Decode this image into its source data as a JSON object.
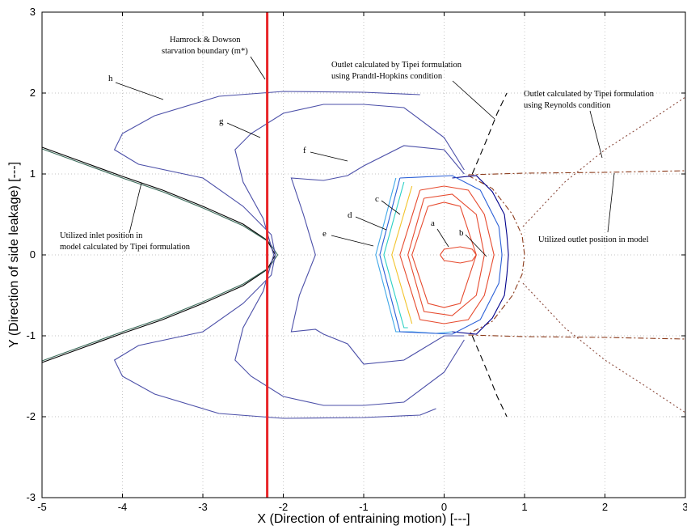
{
  "chart_data": {
    "type": "line",
    "xlabel": "X (Direction of entraining motion) [---]",
    "ylabel": "Y (Direction of side leakage) [---]",
    "xlim": [
      -5,
      3
    ],
    "ylim": [
      -3,
      3
    ],
    "xticks": [
      "-5",
      "-4",
      "-3",
      "-2",
      "-1",
      "0",
      "1",
      "2",
      "3"
    ],
    "yticks": [
      "-3",
      "-2",
      "-1",
      "0",
      "1",
      "2",
      "3"
    ],
    "grid": true,
    "annotations": {
      "hamrock1": "Hamrock & Dowson",
      "hamrock2": "starvation boundary (m*)",
      "prandtl1": "Outlet calculated by Tipei formulation",
      "prandtl2": "using Prandtl-Hopkins condition",
      "reynolds1": "Outlet calculated by Tipei formulation",
      "reynolds2": "using Reynolds condition",
      "inlet1": "Utilized inlet position in",
      "inlet2": "model calculated by Tipei formulation",
      "outlet": "Utilized outlet position in model"
    },
    "contour_labels": [
      "a",
      "b",
      "c",
      "d",
      "e",
      "f",
      "g",
      "h"
    ],
    "starvation_boundary_x": -2.2,
    "series": [
      {
        "id": "inlet-1",
        "color": "#000000",
        "x": [
          -5,
          -4.5,
          -4,
          -3.5,
          -3,
          -2.5,
          -2.2,
          -2.1,
          -2.2,
          -2.5,
          -3,
          -3.5,
          -4,
          -4.5,
          -5
        ],
        "y": [
          1.33,
          1.15,
          0.97,
          0.8,
          0.6,
          0.38,
          0.18,
          0,
          -0.18,
          -0.38,
          -0.6,
          -0.8,
          -0.97,
          -1.15,
          -1.33
        ]
      },
      {
        "id": "inlet-2",
        "color": "#3a6b5a",
        "x": [
          -5,
          -4.5,
          -4,
          -3.5,
          -3,
          -2.5,
          -2.18,
          -2.07,
          -2.18,
          -2.5,
          -3,
          -3.5,
          -4,
          -4.5,
          -5
        ],
        "y": [
          1.31,
          1.13,
          0.95,
          0.78,
          0.58,
          0.36,
          0.16,
          0,
          -0.16,
          -0.36,
          -0.58,
          -0.78,
          -0.95,
          -1.13,
          -1.31
        ]
      },
      {
        "id": "outlet-ph-top",
        "color": "#000000",
        "dash": "8,5",
        "x": [
          0.35,
          0.52,
          0.66,
          0.78
        ],
        "y": [
          1.0,
          1.4,
          1.75,
          2.0
        ]
      },
      {
        "id": "outlet-ph-bot",
        "color": "#000000",
        "dash": "8,5",
        "x": [
          0.35,
          0.52,
          0.66,
          0.78
        ],
        "y": [
          -1.0,
          -1.4,
          -1.75,
          -2.0
        ]
      },
      {
        "id": "outlet-rey-top",
        "color": "#8b4a3c",
        "dash": "2,3",
        "x": [
          0.98,
          1.5,
          2.0,
          2.5,
          3.0
        ],
        "y": [
          -0.35,
          -0.9,
          -1.3,
          -1.62,
          -1.95
        ]
      },
      {
        "id": "outlet-rey-bot",
        "color": "#8b4a3c",
        "dash": "2,3",
        "x": [
          0.98,
          1.5,
          2.0,
          2.5,
          3.0
        ],
        "y": [
          0.35,
          0.9,
          1.3,
          1.62,
          1.95
        ]
      },
      {
        "id": "utilized-outlet",
        "color": "#8b3a1a",
        "dash": "7,3,2,3",
        "x": [
          0.3,
          0.6,
          0.85,
          0.97,
          1.0,
          0.97,
          0.85,
          0.6,
          0.3
        ],
        "y": [
          0.98,
          0.82,
          0.5,
          0.24,
          0,
          -0.24,
          -0.5,
          -0.82,
          -0.98
        ]
      },
      {
        "id": "utilized-outlet-top",
        "color": "#8b3a1a",
        "dash": "7,3,2,3",
        "x": [
          0.3,
          1.0,
          2.0,
          3.0
        ],
        "y": [
          0.99,
          1.01,
          1.02,
          1.04
        ]
      },
      {
        "id": "utilized-outlet-bot",
        "color": "#8b3a1a",
        "dash": "7,3,2,3",
        "x": [
          0.3,
          1.0,
          2.0,
          3.0
        ],
        "y": [
          -0.99,
          -1.01,
          -1.02,
          -1.04
        ]
      },
      {
        "id": "outlet-outline",
        "color": "#00008b",
        "x": [
          0.1,
          0.4,
          0.6,
          0.75,
          0.78,
          0.8,
          0.78,
          0.75,
          0.6,
          0.4,
          0.1
        ],
        "y": [
          0.95,
          0.98,
          0.78,
          0.5,
          0.25,
          0,
          -0.25,
          -0.5,
          -0.78,
          -0.98,
          -0.95
        ]
      },
      {
        "id": "contour-h",
        "color": "#4b4fa8",
        "x": [
          -0.3,
          -1,
          -2,
          -2.8,
          -3.6,
          -4.0,
          -4.1,
          -3.8,
          -3.0,
          -2.5,
          -2.15,
          -2.1,
          -2.15,
          -2.5,
          -3.0,
          -3.8,
          -4.1,
          -4.0,
          -3.6,
          -2.8,
          -2,
          -1,
          -0.3,
          -0.1
        ],
        "y": [
          1.98,
          2.01,
          2.02,
          1.96,
          1.72,
          1.5,
          1.3,
          1.12,
          0.95,
          0.6,
          0.25,
          0,
          -0.25,
          -0.6,
          -0.95,
          -1.12,
          -1.3,
          -1.5,
          -1.72,
          -1.96,
          -2.02,
          -2.01,
          -1.98,
          -1.9
        ]
      },
      {
        "id": "contour-g",
        "color": "#4b4fa8",
        "x": [
          0.25,
          0.0,
          -0.5,
          -1.0,
          -1.5,
          -2.0,
          -2.4,
          -2.6,
          -2.5,
          -2.25,
          -2.12,
          -2.25,
          -2.5,
          -2.6,
          -2.4,
          -2.0,
          -1.5,
          -1.0,
          -0.5,
          0.0,
          0.25
        ],
        "y": [
          1.05,
          1.45,
          1.82,
          1.86,
          1.86,
          1.75,
          1.5,
          1.3,
          0.9,
          0.45,
          0,
          -0.45,
          -0.9,
          -1.3,
          -1.5,
          -1.75,
          -1.86,
          -1.86,
          -1.82,
          -1.45,
          -1.05
        ]
      },
      {
        "id": "contour-f",
        "color": "#4b4fa8",
        "x": [
          0.25,
          0,
          -0.5,
          -1.0,
          -1.2,
          -1.5,
          -1.9,
          -1.75,
          -1.6,
          -1.8,
          -1.9,
          -1.6,
          -1.5,
          -1.2,
          -1.0,
          -0.5,
          0,
          0.25
        ],
        "y": [
          1.0,
          1.3,
          1.35,
          1.1,
          0.98,
          0.92,
          0.95,
          0.5,
          0,
          -0.5,
          -0.95,
          -0.92,
          -0.98,
          -1.1,
          -1.35,
          -1.3,
          -1.0,
          -1.0
        ]
      },
      {
        "id": "contour-e",
        "color": "#3fa7e8",
        "x": [
          -0.6,
          -0.85,
          -0.6,
          -0.55,
          -0.4,
          -0.1,
          0.1
        ],
        "y": [
          0.95,
          0,
          -0.95,
          -0.95,
          -0.95,
          -0.97,
          -0.95
        ]
      },
      {
        "id": "contour-d",
        "color": "#2bd0c5",
        "x": [
          -0.5,
          -0.75,
          -0.5,
          -0.45
        ],
        "y": [
          0.9,
          0,
          -0.9,
          -0.9
        ]
      },
      {
        "id": "contour-c",
        "color": "#f2c32b",
        "x": [
          -0.4,
          -0.65,
          -0.4
        ],
        "y": [
          0.85,
          0,
          -0.85
        ]
      },
      {
        "id": "contour-red1",
        "color": "#e64a2e",
        "x": [
          -0.3,
          -0.55,
          -0.3,
          0.0,
          0.3,
          0.5,
          0.62,
          0.5,
          0.3,
          0.0,
          -0.3
        ],
        "y": [
          0.8,
          0,
          -0.8,
          -0.85,
          -0.8,
          -0.5,
          0,
          0.5,
          0.8,
          0.85,
          0.8
        ]
      },
      {
        "id": "contour-red2",
        "color": "#e64a2e",
        "x": [
          -0.2,
          -0.4,
          -0.2,
          0.0,
          0.2,
          0.4,
          0.2,
          0.0,
          -0.2
        ],
        "y": [
          0.6,
          0,
          -0.6,
          -0.65,
          -0.6,
          0,
          0.6,
          0.65,
          0.6
        ]
      },
      {
        "id": "contour-a",
        "color": "#e64a2e",
        "x": [
          -0.05,
          0.0,
          0.2,
          0.35,
          0.4,
          0.35,
          0.2,
          0.0,
          -0.05
        ],
        "y": [
          0,
          0.07,
          0.1,
          0.07,
          0,
          -0.07,
          -0.1,
          -0.07,
          0
        ]
      },
      {
        "id": "contour-b",
        "color": "#e64a2e",
        "x": [
          -0.25,
          -0.45,
          -0.25,
          0.1,
          0.4,
          0.5,
          0.4,
          0.1,
          -0.25
        ],
        "y": [
          0.7,
          0,
          -0.7,
          -0.75,
          -0.5,
          0,
          0.5,
          0.75,
          0.7
        ]
      },
      {
        "id": "contour-blue",
        "color": "#2a5fd6",
        "x": [
          -0.55,
          -0.8,
          -0.55,
          0.1,
          0.45,
          0.68,
          0.72,
          0.68,
          0.45,
          0.1,
          -0.55
        ],
        "y": [
          0.95,
          0,
          -0.95,
          -0.98,
          -0.8,
          -0.35,
          0,
          0.35,
          0.8,
          0.98,
          0.95
        ]
      }
    ]
  }
}
